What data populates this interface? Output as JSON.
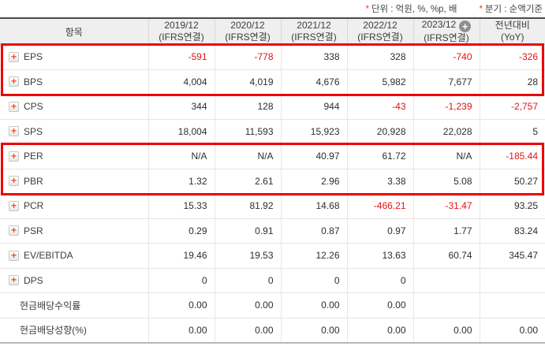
{
  "notes": {
    "unit": {
      "star": "*",
      "text": "단위 : 억원, %, %p, 배"
    },
    "basis": {
      "star": "*",
      "text": "분기 : 순액기준"
    }
  },
  "table": {
    "item_header": "항목",
    "columns": [
      {
        "period": "2019/12",
        "standard": "(IFRS연결)"
      },
      {
        "period": "2020/12",
        "standard": "(IFRS연결)"
      },
      {
        "period": "2021/12",
        "standard": "(IFRS연결)"
      },
      {
        "period": "2022/12",
        "standard": "(IFRS연결)"
      },
      {
        "period": "2023/12",
        "standard": "(IFRS연결)",
        "plus_icon": true
      },
      {
        "period": "전년대비",
        "standard": "(YoY)"
      }
    ],
    "rows": [
      {
        "label": "EPS",
        "icon": true,
        "highlight": "box1",
        "values": [
          "-591",
          "-778",
          "338",
          "328",
          "-740",
          "-326"
        ]
      },
      {
        "label": "BPS",
        "icon": true,
        "highlight": "box1",
        "values": [
          "4,004",
          "4,019",
          "4,676",
          "5,982",
          "7,677",
          "28"
        ]
      },
      {
        "label": "CPS",
        "icon": true,
        "values": [
          "344",
          "128",
          "944",
          "-43",
          "-1,239",
          "-2,757"
        ]
      },
      {
        "label": "SPS",
        "icon": true,
        "values": [
          "18,004",
          "11,593",
          "15,923",
          "20,928",
          "22,028",
          "5"
        ]
      },
      {
        "label": "PER",
        "icon": true,
        "highlight": "box2",
        "values": [
          "N/A",
          "N/A",
          "40.97",
          "61.72",
          "N/A",
          "-185.44"
        ]
      },
      {
        "label": "PBR",
        "icon": true,
        "highlight": "box2",
        "values": [
          "1.32",
          "2.61",
          "2.96",
          "3.38",
          "5.08",
          "50.27"
        ]
      },
      {
        "label": "PCR",
        "icon": true,
        "values": [
          "15.33",
          "81.92",
          "14.68",
          "-466.21",
          "-31.47",
          "93.25"
        ]
      },
      {
        "label": "PSR",
        "icon": true,
        "values": [
          "0.29",
          "0.91",
          "0.87",
          "0.97",
          "1.77",
          "83.24"
        ]
      },
      {
        "label": "EV/EBITDA",
        "icon": true,
        "values": [
          "19.46",
          "19.53",
          "12.26",
          "13.63",
          "60.74",
          "345.47"
        ]
      },
      {
        "label": "DPS",
        "icon": true,
        "values": [
          "0",
          "0",
          "0",
          "0",
          "",
          ""
        ]
      },
      {
        "label": "현금배당수익률",
        "icon": false,
        "values": [
          "0.00",
          "0.00",
          "0.00",
          "0.00",
          "",
          ""
        ]
      },
      {
        "label": "현금배당성향(%)",
        "icon": false,
        "values": [
          "0.00",
          "0.00",
          "0.00",
          "0.00",
          "0.00",
          "0.00"
        ]
      }
    ]
  },
  "colors": {
    "negative_value": "#e01414",
    "highlight_box": "#ee0000",
    "row_expand_plus": "#f4511e",
    "header_add_circle": "#8f8f8f",
    "header_background": "#efefef",
    "note_star": "#e8401c"
  }
}
